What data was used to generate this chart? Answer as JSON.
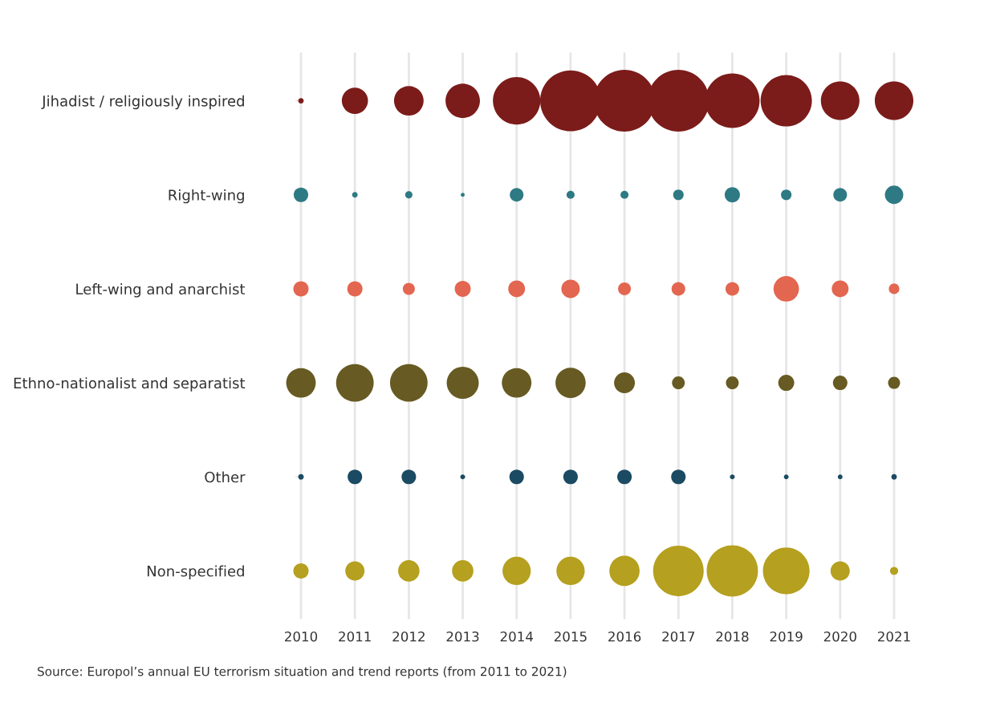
{
  "chart_data": {
    "type": "bubble",
    "orientation": "horizontal",
    "categories": [
      "Jihadist / religiously inspired",
      "Right-wing",
      "Left-wing and anarchist",
      "Ethno-nationalist and separatist",
      "Other",
      "Non-specified"
    ],
    "xlim": [
      2010,
      2021
    ],
    "xticks": [
      2010,
      2011,
      2012,
      2013,
      2014,
      2015,
      2016,
      2017,
      2018,
      2019,
      2020,
      2021
    ],
    "grid": "x",
    "legend": false,
    "series": [
      {
        "colors": [
          "#7b1c1a",
          "#2e7a84",
          "#e36650",
          "#675a22",
          "#1b4a63",
          "#b5a01f"
        ],
        "values": [
          2010,
          2010,
          2010,
          2010,
          2010,
          2010
        ],
        "sizes": [
          0.008,
          0.055,
          0.061,
          0.23,
          0.008,
          0.061
        ]
      },
      {
        "colors": [
          "#7b1c1a",
          "#2e7a84",
          "#e36650",
          "#675a22",
          "#1b4a63",
          "#b5a01f"
        ],
        "values": [
          2011,
          2011,
          2011,
          2011,
          2011,
          2011
        ],
        "sizes": [
          0.18,
          0.008,
          0.061,
          0.37,
          0.055,
          0.097
        ]
      },
      {
        "colors": [
          "#7b1c1a",
          "#2e7a84",
          "#e36650",
          "#675a22",
          "#1b4a63",
          "#b5a01f"
        ],
        "values": [
          2012,
          2012,
          2012,
          2012,
          2012,
          2012
        ],
        "sizes": [
          0.23,
          0.014,
          0.038,
          0.37,
          0.055,
          0.12
        ]
      },
      {
        "colors": [
          "#7b1c1a",
          "#2e7a84",
          "#e36650",
          "#675a22",
          "#1b4a63",
          "#b5a01f"
        ],
        "values": [
          2013,
          2013,
          2013,
          2013,
          2013,
          2013
        ],
        "sizes": [
          0.31,
          0.004,
          0.067,
          0.27,
          0.006,
          0.12
        ]
      },
      {
        "colors": [
          "#7b1c1a",
          "#2e7a84",
          "#e36650",
          "#675a22",
          "#1b4a63",
          "#b5a01f"
        ],
        "values": [
          2014,
          2014,
          2014,
          2014,
          2014,
          2014
        ],
        "sizes": [
          0.59,
          0.049,
          0.074,
          0.23,
          0.055,
          0.21
        ]
      },
      {
        "colors": [
          "#7b1c1a",
          "#2e7a84",
          "#e36650",
          "#675a22",
          "#1b4a63",
          "#b5a01f"
        ],
        "values": [
          2015,
          2015,
          2015,
          2015,
          2015,
          2015
        ],
        "sizes": [
          0.97,
          0.017,
          0.089,
          0.24,
          0.055,
          0.21
        ]
      },
      {
        "colors": [
          "#7b1c1a",
          "#2e7a84",
          "#e36650",
          "#675a22",
          "#1b4a63",
          "#b5a01f"
        ],
        "values": [
          2016,
          2016,
          2016,
          2016,
          2016,
          2016
        ],
        "sizes": [
          1.0,
          0.017,
          0.043,
          0.114,
          0.055,
          0.24
        ]
      },
      {
        "colors": [
          "#7b1c1a",
          "#2e7a84",
          "#e36650",
          "#675a22",
          "#1b4a63",
          "#b5a01f"
        ],
        "values": [
          2017,
          2017,
          2017,
          2017,
          2017,
          2017
        ],
        "sizes": [
          1.0,
          0.029,
          0.049,
          0.043,
          0.055,
          0.67
        ]
      },
      {
        "colors": [
          "#7b1c1a",
          "#2e7a84",
          "#e36650",
          "#675a22",
          "#1b4a63",
          "#b5a01f"
        ],
        "values": [
          2018,
          2018,
          2018,
          2018,
          2018,
          2018
        ],
        "sizes": [
          0.78,
          0.061,
          0.049,
          0.043,
          0.006,
          0.69
        ]
      },
      {
        "colors": [
          "#7b1c1a",
          "#2e7a84",
          "#e36650",
          "#675a22",
          "#1b4a63",
          "#b5a01f"
        ],
        "values": [
          2019,
          2019,
          2019,
          2019,
          2019,
          2019
        ],
        "sizes": [
          0.69,
          0.029,
          0.17,
          0.067,
          0.006,
          0.57
        ]
      },
      {
        "colors": [
          "#7b1c1a",
          "#2e7a84",
          "#e36650",
          "#675a22",
          "#1b4a63",
          "#b5a01f"
        ],
        "values": [
          2020,
          2020,
          2020,
          2020,
          2020,
          2020
        ],
        "sizes": [
          0.39,
          0.049,
          0.074,
          0.055,
          0.006,
          0.097
        ]
      },
      {
        "colors": [
          "#7b1c1a",
          "#2e7a84",
          "#e36650",
          "#675a22",
          "#1b4a63",
          "#b5a01f"
        ],
        "values": [
          2021,
          2021,
          2021,
          2021,
          2021,
          2021
        ],
        "sizes": [
          0.39,
          0.089,
          0.029,
          0.038,
          0.008,
          0.017
        ]
      }
    ],
    "annotations": [
      "Source: Europol’s annual EU terrorism situation and trend reports (from 2011 to 2021)"
    ]
  }
}
